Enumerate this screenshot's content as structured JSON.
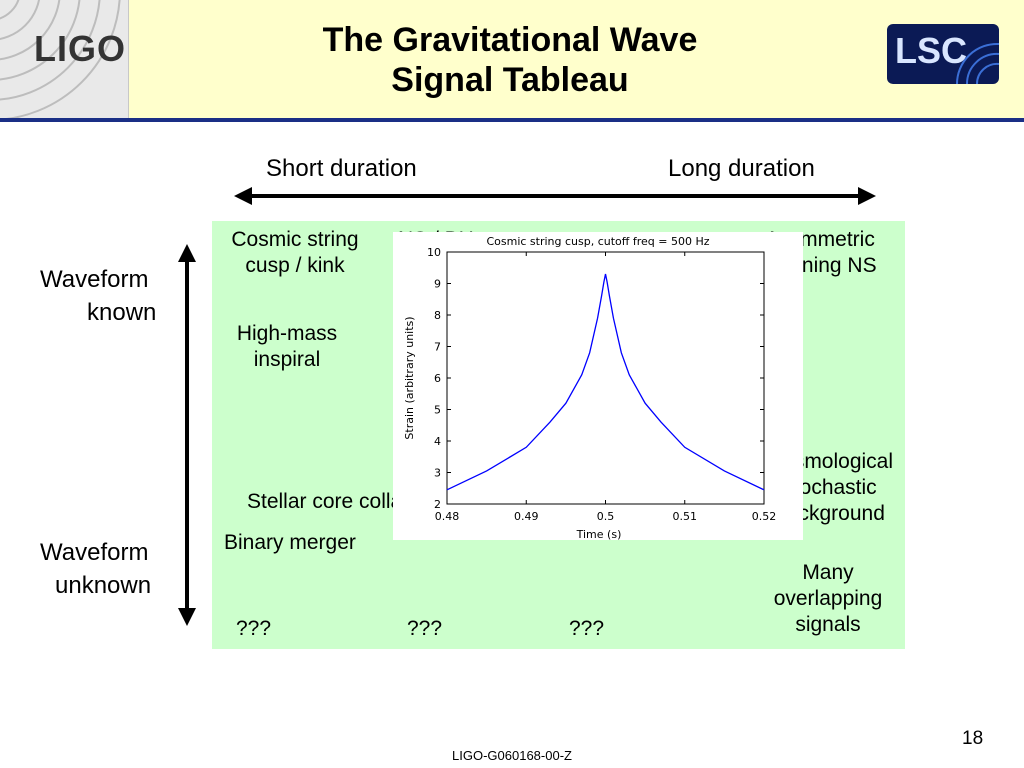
{
  "header": {
    "logo_left": "LIGO",
    "title_line1": "The Gravitational Wave",
    "title_line2": "Signal Tableau",
    "logo_right": "LSC"
  },
  "axes": {
    "short": "Short duration",
    "long": "Long duration",
    "known_1": "Waveform",
    "known_2": "known",
    "unknown_1": "Waveform",
    "unknown_2": "unknown"
  },
  "cells": {
    "cosmic_1": "Cosmic string",
    "cosmic_2": "cusp / kink",
    "nsbh": "NS / BH",
    "asym_1": "Asymmetric",
    "asym_2": "spinning NS",
    "hm_1": "High-mass",
    "hm_2": "inspiral",
    "cosmo_1": "Cosmological",
    "cosmo_2": "stochastic",
    "cosmo_3": "background",
    "stellar": "Stellar core collapse",
    "binary": "Binary merger",
    "many_1": "Many",
    "many_2": "overlapping",
    "many_3": "signals",
    "q1": "???",
    "q2": "???",
    "q3": "???"
  },
  "chart_data": {
    "type": "line",
    "title": "Cosmic string cusp, cutoff freq = 500 Hz",
    "xlabel": "Time (s)",
    "ylabel": "Strain (arbitrary units)",
    "xlim": [
      0.48,
      0.52
    ],
    "ylim": [
      2,
      10
    ],
    "xticks": [
      "0.48",
      "0.49",
      "0.5",
      "0.51",
      "0.52"
    ],
    "yticks": [
      "2",
      "3",
      "4",
      "5",
      "6",
      "7",
      "8",
      "9",
      "10"
    ],
    "series": [
      {
        "color": "#0000ff",
        "x": [
          0.48,
          0.485,
          0.49,
          0.493,
          0.495,
          0.497,
          0.498,
          0.499,
          0.4995,
          0.4998,
          0.5,
          0.5002,
          0.5005,
          0.501,
          0.502,
          0.503,
          0.505,
          0.507,
          0.51,
          0.515,
          0.52
        ],
        "y": [
          2.45,
          3.05,
          3.8,
          4.6,
          5.2,
          6.1,
          6.8,
          7.9,
          8.6,
          9.05,
          9.3,
          9.05,
          8.6,
          7.9,
          6.8,
          6.1,
          5.2,
          4.6,
          3.8,
          3.05,
          2.45
        ]
      }
    ]
  },
  "footer": {
    "doc_id": "LIGO-G060168-00-Z",
    "page": "18"
  }
}
